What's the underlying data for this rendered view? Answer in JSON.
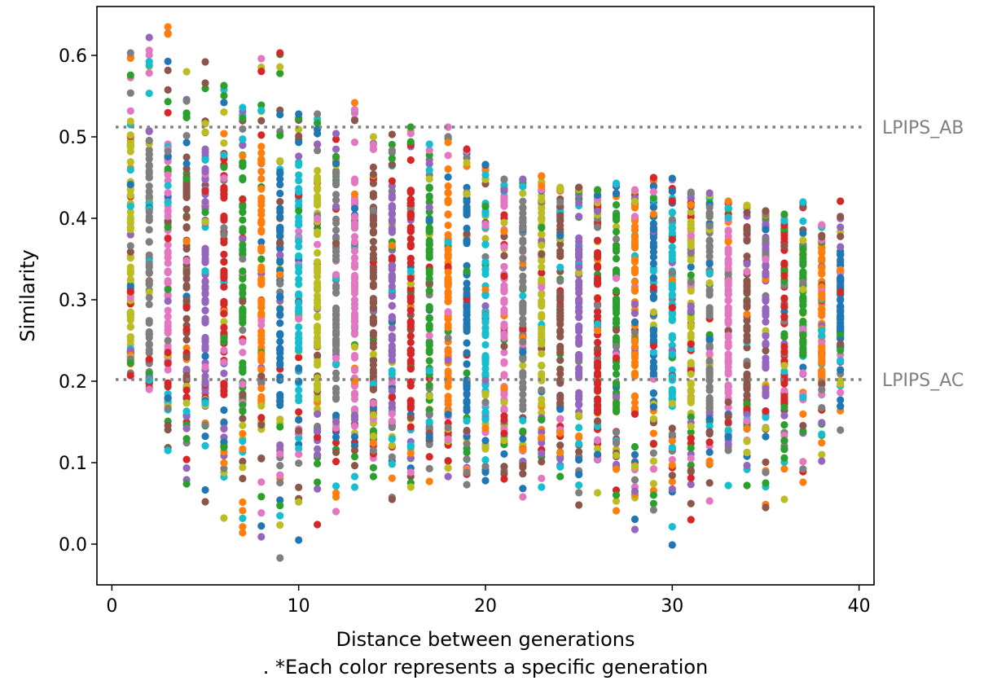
{
  "chart_data": {
    "type": "scatter",
    "xlabel": "Distance between generations",
    "caption": ". *Each color represents a specific generation",
    "ylabel": "Similarity",
    "xlim": [
      -0.8,
      40.8
    ],
    "ylim": [
      -0.05,
      0.66
    ],
    "xticks": [
      0,
      10,
      20,
      30,
      40
    ],
    "xtick_labels": [
      "0",
      "10",
      "20",
      "30",
      "40"
    ],
    "yticks": [
      0.0,
      0.1,
      0.2,
      0.3,
      0.4,
      0.5,
      0.6
    ],
    "ytick_labels": [
      "0.0",
      "0.1",
      "0.2",
      "0.3",
      "0.4",
      "0.5",
      "0.6"
    ],
    "reference_lines": [
      {
        "label": "LPIPS_AB",
        "y": 0.512,
        "color": "#808080",
        "style": "dotted"
      },
      {
        "label": "LPIPS_AC",
        "y": 0.202,
        "color": "#808080",
        "style": "dotted"
      }
    ],
    "palette": [
      "#1f77b4",
      "#ff7f0e",
      "#2ca02c",
      "#d62728",
      "#9467bd",
      "#8c564b",
      "#e377c2",
      "#7f7f7f",
      "#bcbd22",
      "#17becf"
    ],
    "distance_columns": [
      {
        "x": 1,
        "dominant": "#bcbd22",
        "core": [
          0.24,
          0.52
        ],
        "min": 0.207,
        "max": 0.603
      },
      {
        "x": 2,
        "dominant": "#7f7f7f",
        "core": [
          0.21,
          0.51
        ],
        "min": 0.19,
        "max": 0.622
      },
      {
        "x": 3,
        "dominant": "#e377c2",
        "core": [
          0.2,
          0.5
        ],
        "min": 0.115,
        "max": 0.635
      },
      {
        "x": 4,
        "dominant": "#8c564b",
        "core": [
          0.19,
          0.5
        ],
        "min": 0.074,
        "max": 0.58
      },
      {
        "x": 5,
        "dominant": "#9467bd",
        "core": [
          0.18,
          0.49
        ],
        "min": 0.052,
        "max": 0.592
      },
      {
        "x": 6,
        "dominant": "#d62728",
        "core": [
          0.18,
          0.48
        ],
        "min": 0.032,
        "max": 0.563
      },
      {
        "x": 7,
        "dominant": "#2ca02c",
        "core": [
          0.17,
          0.49
        ],
        "min": 0.014,
        "max": 0.536
      },
      {
        "x": 8,
        "dominant": "#ff7f0e",
        "core": [
          0.17,
          0.49
        ],
        "min": 0.009,
        "max": 0.596
      },
      {
        "x": 9,
        "dominant": "#1f77b4",
        "core": [
          0.17,
          0.48
        ],
        "min": -0.017,
        "max": 0.603
      },
      {
        "x": 10,
        "dominant": "#17becf",
        "core": [
          0.17,
          0.47
        ],
        "min": 0.005,
        "max": 0.528
      },
      {
        "x": 11,
        "dominant": "#bcbd22",
        "core": [
          0.16,
          0.46
        ],
        "min": 0.024,
        "max": 0.528
      },
      {
        "x": 12,
        "dominant": "#7f7f7f",
        "core": [
          0.16,
          0.46
        ],
        "min": 0.04,
        "max": 0.504
      },
      {
        "x": 13,
        "dominant": "#e377c2",
        "core": [
          0.16,
          0.45
        ],
        "min": 0.07,
        "max": 0.542
      },
      {
        "x": 14,
        "dominant": "#8c564b",
        "core": [
          0.16,
          0.45
        ],
        "min": 0.083,
        "max": 0.5
      },
      {
        "x": 15,
        "dominant": "#9467bd",
        "core": [
          0.16,
          0.44
        ],
        "min": 0.055,
        "max": 0.503
      },
      {
        "x": 16,
        "dominant": "#d62728",
        "core": [
          0.16,
          0.44
        ],
        "min": 0.07,
        "max": 0.512
      },
      {
        "x": 17,
        "dominant": "#2ca02c",
        "core": [
          0.16,
          0.44
        ],
        "min": 0.077,
        "max": 0.491
      },
      {
        "x": 18,
        "dominant": "#ff7f0e",
        "core": [
          0.16,
          0.44
        ],
        "min": 0.083,
        "max": 0.512
      },
      {
        "x": 19,
        "dominant": "#1f77b4",
        "core": [
          0.16,
          0.44
        ],
        "min": 0.073,
        "max": 0.485
      },
      {
        "x": 20,
        "dominant": "#17becf",
        "core": [
          0.16,
          0.43
        ],
        "min": 0.078,
        "max": 0.466
      },
      {
        "x": 21,
        "dominant": "#e377c2",
        "core": [
          0.16,
          0.43
        ],
        "min": 0.08,
        "max": 0.448
      },
      {
        "x": 22,
        "dominant": "#7f7f7f",
        "core": [
          0.16,
          0.43
        ],
        "min": 0.058,
        "max": 0.448
      },
      {
        "x": 23,
        "dominant": "#bcbd22",
        "core": [
          0.16,
          0.43
        ],
        "min": 0.07,
        "max": 0.452
      },
      {
        "x": 24,
        "dominant": "#8c564b",
        "core": [
          0.16,
          0.43
        ],
        "min": 0.083,
        "max": 0.438
      },
      {
        "x": 25,
        "dominant": "#9467bd",
        "core": [
          0.16,
          0.43
        ],
        "min": 0.048,
        "max": 0.438
      },
      {
        "x": 26,
        "dominant": "#d62728",
        "core": [
          0.16,
          0.42
        ],
        "min": 0.063,
        "max": 0.435
      },
      {
        "x": 27,
        "dominant": "#2ca02c",
        "core": [
          0.16,
          0.42
        ],
        "min": 0.041,
        "max": 0.443
      },
      {
        "x": 28,
        "dominant": "#ff7f0e",
        "core": [
          0.16,
          0.42
        ],
        "min": 0.018,
        "max": 0.435
      },
      {
        "x": 29,
        "dominant": "#1f77b4",
        "core": [
          0.16,
          0.42
        ],
        "min": 0.042,
        "max": 0.45
      },
      {
        "x": 30,
        "dominant": "#17becf",
        "core": [
          0.16,
          0.41
        ],
        "min": -0.001,
        "max": 0.449
      },
      {
        "x": 31,
        "dominant": "#bcbd22",
        "core": [
          0.16,
          0.41
        ],
        "min": 0.03,
        "max": 0.432
      },
      {
        "x": 32,
        "dominant": "#7f7f7f",
        "core": [
          0.16,
          0.41
        ],
        "min": 0.053,
        "max": 0.431
      },
      {
        "x": 33,
        "dominant": "#e377c2",
        "core": [
          0.16,
          0.41
        ],
        "min": 0.072,
        "max": 0.421
      },
      {
        "x": 34,
        "dominant": "#8c564b",
        "core": [
          0.16,
          0.4
        ],
        "min": 0.072,
        "max": 0.416
      },
      {
        "x": 35,
        "dominant": "#9467bd",
        "core": [
          0.17,
          0.4
        ],
        "min": 0.045,
        "max": 0.409
      },
      {
        "x": 36,
        "dominant": "#d62728",
        "core": [
          0.17,
          0.39
        ],
        "min": 0.055,
        "max": 0.405
      },
      {
        "x": 37,
        "dominant": "#2ca02c",
        "core": [
          0.23,
          0.37
        ],
        "min": 0.076,
        "max": 0.42
      },
      {
        "x": 38,
        "dominant": "#ff7f0e",
        "core": [
          0.2,
          0.37
        ],
        "min": 0.102,
        "max": 0.392
      },
      {
        "x": 39,
        "dominant": "#1f77b4",
        "core": [
          0.24,
          0.36
        ],
        "min": 0.14,
        "max": 0.421
      }
    ]
  }
}
